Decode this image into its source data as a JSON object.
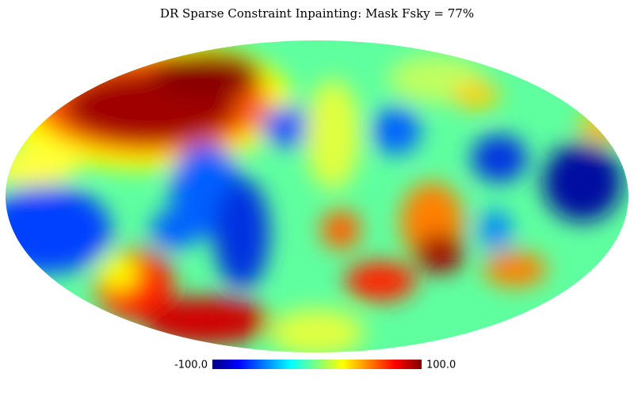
{
  "map": {
    "title": "DR Sparse Constraint Inpainting: Mask Fsky = 77%",
    "colorbar": {
      "min": {
        "value": -100,
        "label": "-100.0"
      },
      "max": {
        "value": 100,
        "label": "100.0"
      },
      "colormap": [
        "#00007f",
        "#0000ff",
        "#007fff",
        "#00ffff",
        "#7fff7f",
        "#ffff00",
        "#ff7f00",
        "#ff0000",
        "#7f0000"
      ]
    }
  }
}
